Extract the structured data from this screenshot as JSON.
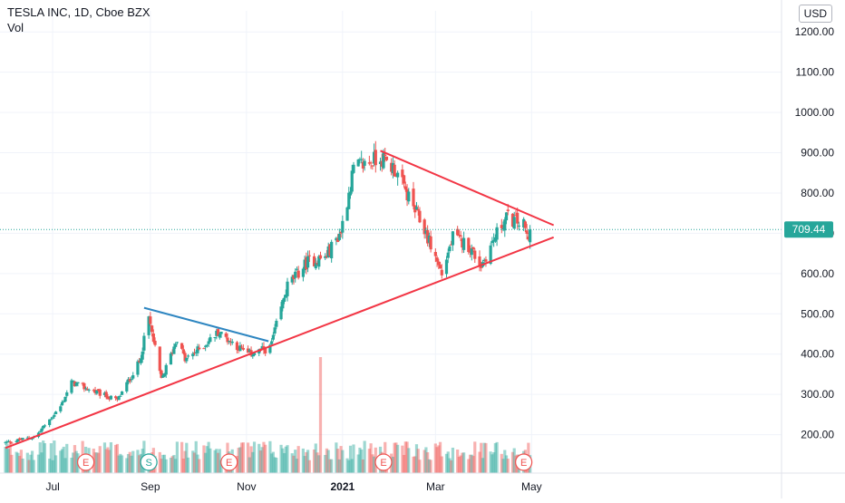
{
  "header": {
    "title": "TESLA INC, 1D, Cboe BZX",
    "volume_label": "Vol",
    "currency_button": "USD"
  },
  "price_badge": "709.44",
  "colors": {
    "up": "#26a69a",
    "down": "#ef5350",
    "trendline_red": "#f23645",
    "trendline_blue": "#2e86c1",
    "badge": "#26a69a",
    "grid": "#f0f3fa"
  },
  "chart_data": {
    "type": "candlestick",
    "title": "TESLA INC, 1D, Cboe BZX",
    "y_axis_side": "right",
    "ylim": [
      105,
      1245
    ],
    "y_ticks": [
      "200.00",
      "300.00",
      "400.00",
      "500.00",
      "600.00",
      "700.00",
      "800.00",
      "900.00",
      "1000.00",
      "1100.00",
      "1200.00"
    ],
    "x_ticks": [
      "Jul",
      "Sep",
      "Nov",
      "2021",
      "Mar",
      "May"
    ],
    "last_price": 709.44,
    "events": [
      {
        "label": "E",
        "near": "Jul"
      },
      {
        "label": "S",
        "near": "Sep"
      },
      {
        "label": "E",
        "near": "Oct"
      },
      {
        "label": "E",
        "near": "Jan 2021"
      },
      {
        "label": "E",
        "near": "Apr 2021"
      }
    ],
    "price_anchors": [
      [
        "2020-06-01",
        180
      ],
      [
        "2020-06-20",
        195
      ],
      [
        "2020-07-06",
        270
      ],
      [
        "2020-07-13",
        330
      ],
      [
        "2020-07-22",
        315
      ],
      [
        "2020-08-11",
        285
      ],
      [
        "2020-08-25",
        380
      ],
      [
        "2020-08-31",
        490
      ],
      [
        "2020-09-08",
        335
      ],
      [
        "2020-09-18",
        440
      ],
      [
        "2020-09-23",
        385
      ],
      [
        "2020-10-06",
        425
      ],
      [
        "2020-10-14",
        455
      ],
      [
        "2020-11-02",
        400
      ],
      [
        "2020-11-16",
        415
      ],
      [
        "2020-11-27",
        570
      ],
      [
        "2020-12-10",
        630
      ],
      [
        "2020-12-21",
        640
      ],
      [
        "2020-12-31",
        705
      ],
      [
        "2021-01-08",
        860
      ],
      [
        "2021-01-25",
        890
      ],
      [
        "2021-02-03",
        860
      ],
      [
        "2021-02-23",
        700
      ],
      [
        "2021-03-05",
        600
      ],
      [
        "2021-03-12",
        690
      ],
      [
        "2021-03-22",
        670
      ],
      [
        "2021-03-30",
        620
      ],
      [
        "2021-04-09",
        700
      ],
      [
        "2021-04-15",
        740
      ],
      [
        "2021-04-26",
        720
      ],
      [
        "2021-04-29",
        680
      ],
      [
        "2021-04-30",
        709.44
      ]
    ],
    "volume_spike": {
      "date": "2020-12-18",
      "relative": "largest"
    },
    "trendlines": [
      {
        "color": "red",
        "from": [
          "2020-06-01",
          167
        ],
        "to": [
          "2021-05-15",
          690
        ]
      },
      {
        "color": "red",
        "from": [
          "2021-01-25",
          905
        ],
        "to": [
          "2021-05-15",
          720
        ]
      },
      {
        "color": "blue",
        "from": [
          "2020-08-28",
          515
        ],
        "to": [
          "2020-11-15",
          432
        ]
      }
    ]
  }
}
